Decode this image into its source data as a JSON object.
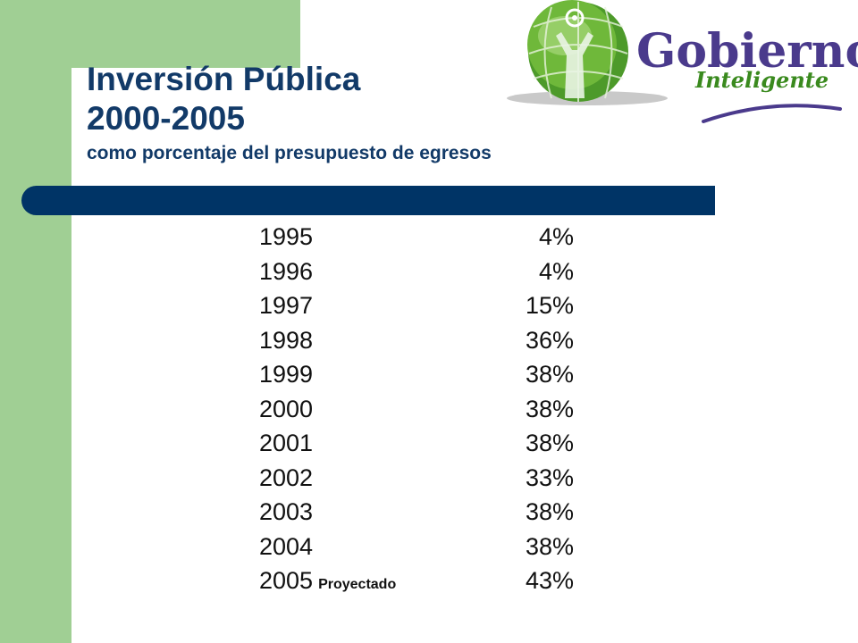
{
  "slide": {
    "title_line1": "Inversión Pública",
    "title_line2": "2000-2005",
    "subtitle": "como porcentaje del presupuesto de egresos"
  },
  "logo": {
    "wordmark": "Gobierno",
    "tagline": "Inteligente"
  },
  "colors": {
    "accent_green": "#a0cf94",
    "navy": "#003466",
    "title_blue": "#123a68",
    "logo_purple": "#4a3a8c",
    "logo_green": "#3a8a1e"
  },
  "table": {
    "rows": [
      {
        "year": "1995",
        "note": "",
        "value": "4%"
      },
      {
        "year": "1996",
        "note": "",
        "value": "4%"
      },
      {
        "year": "1997",
        "note": "",
        "value": "15%"
      },
      {
        "year": "1998",
        "note": "",
        "value": "36%"
      },
      {
        "year": "1999",
        "note": "",
        "value": "38%"
      },
      {
        "year": "2000",
        "note": "",
        "value": "38%"
      },
      {
        "year": "2001",
        "note": "",
        "value": "38%"
      },
      {
        "year": "2002",
        "note": "",
        "value": "33%"
      },
      {
        "year": "2003",
        "note": "",
        "value": "38%"
      },
      {
        "year": "2004",
        "note": "",
        "value": "38%"
      },
      {
        "year": "2005",
        "note": "Proyectado",
        "value": "43%"
      }
    ]
  }
}
